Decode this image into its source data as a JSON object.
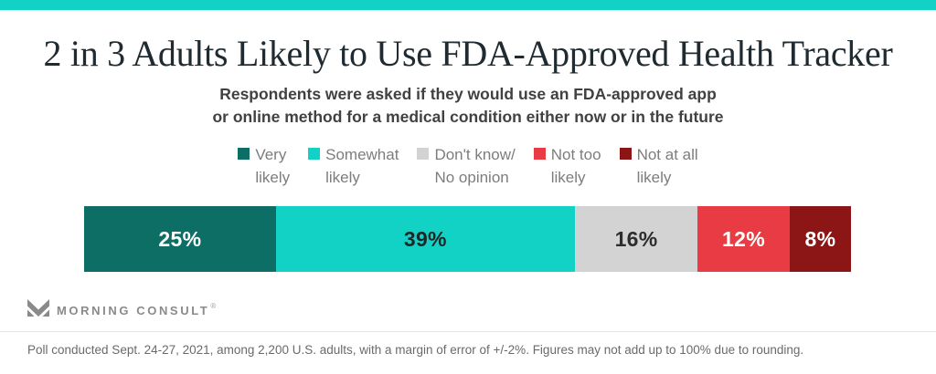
{
  "page": {
    "accent_color": "#12d2c5"
  },
  "header": {
    "title": "2 in 3 Adults Likely to Use FDA-Approved Health Tracker",
    "subtitle_line1": "Respondents were asked if they would use an FDA-approved app",
    "subtitle_line2": "or online method for a medical condition either now or in the future"
  },
  "chart_data": {
    "type": "bar",
    "variant": "horizontal-stacked",
    "title": "2 in 3 Adults Likely to Use FDA-Approved Health Tracker",
    "subtitle": "Respondents were asked if they would use an FDA-approved app or online method for a medical condition either now or in the future",
    "categories": [
      "Very likely",
      "Somewhat likely",
      "Don't know/No opinion",
      "Not too likely",
      "Not at all likely"
    ],
    "values": [
      25,
      39,
      16,
      12,
      8
    ],
    "labels": [
      "25%",
      "39%",
      "16%",
      "12%",
      "8%"
    ],
    "unit": "%",
    "total": 100,
    "colors": [
      "#0d6e66",
      "#12d2c5",
      "#d3d3d3",
      "#e93b43",
      "#8c1515"
    ],
    "label_colors": [
      "#ffffff",
      "#1e2727",
      "#2d2d2d",
      "#ffffff",
      "#ffffff"
    ],
    "legend_position": "top",
    "grid": false,
    "xlim": [
      0,
      100
    ]
  },
  "legend": {
    "items": [
      {
        "line1": "Very",
        "line2": "likely",
        "color": "#0d6e66"
      },
      {
        "line1": "Somewhat",
        "line2": "likely",
        "color": "#12d2c5"
      },
      {
        "line1": "Don't know/",
        "line2": "No opinion",
        "color": "#d3d3d3"
      },
      {
        "line1": "Not too",
        "line2": "likely",
        "color": "#e93b43"
      },
      {
        "line1": "Not at all",
        "line2": "likely",
        "color": "#8c1515"
      }
    ]
  },
  "branding": {
    "logo_icon": "morning-consult-m-icon",
    "logo_text": "MORNING CONSULT",
    "trademark": "®",
    "logo_color": "#8a8a8a"
  },
  "footer": {
    "note": "Poll conducted Sept. 24-27, 2021, among 2,200 U.S. adults, with a margin of error of +/-2%. Figures may not add up to 100% due to rounding."
  }
}
